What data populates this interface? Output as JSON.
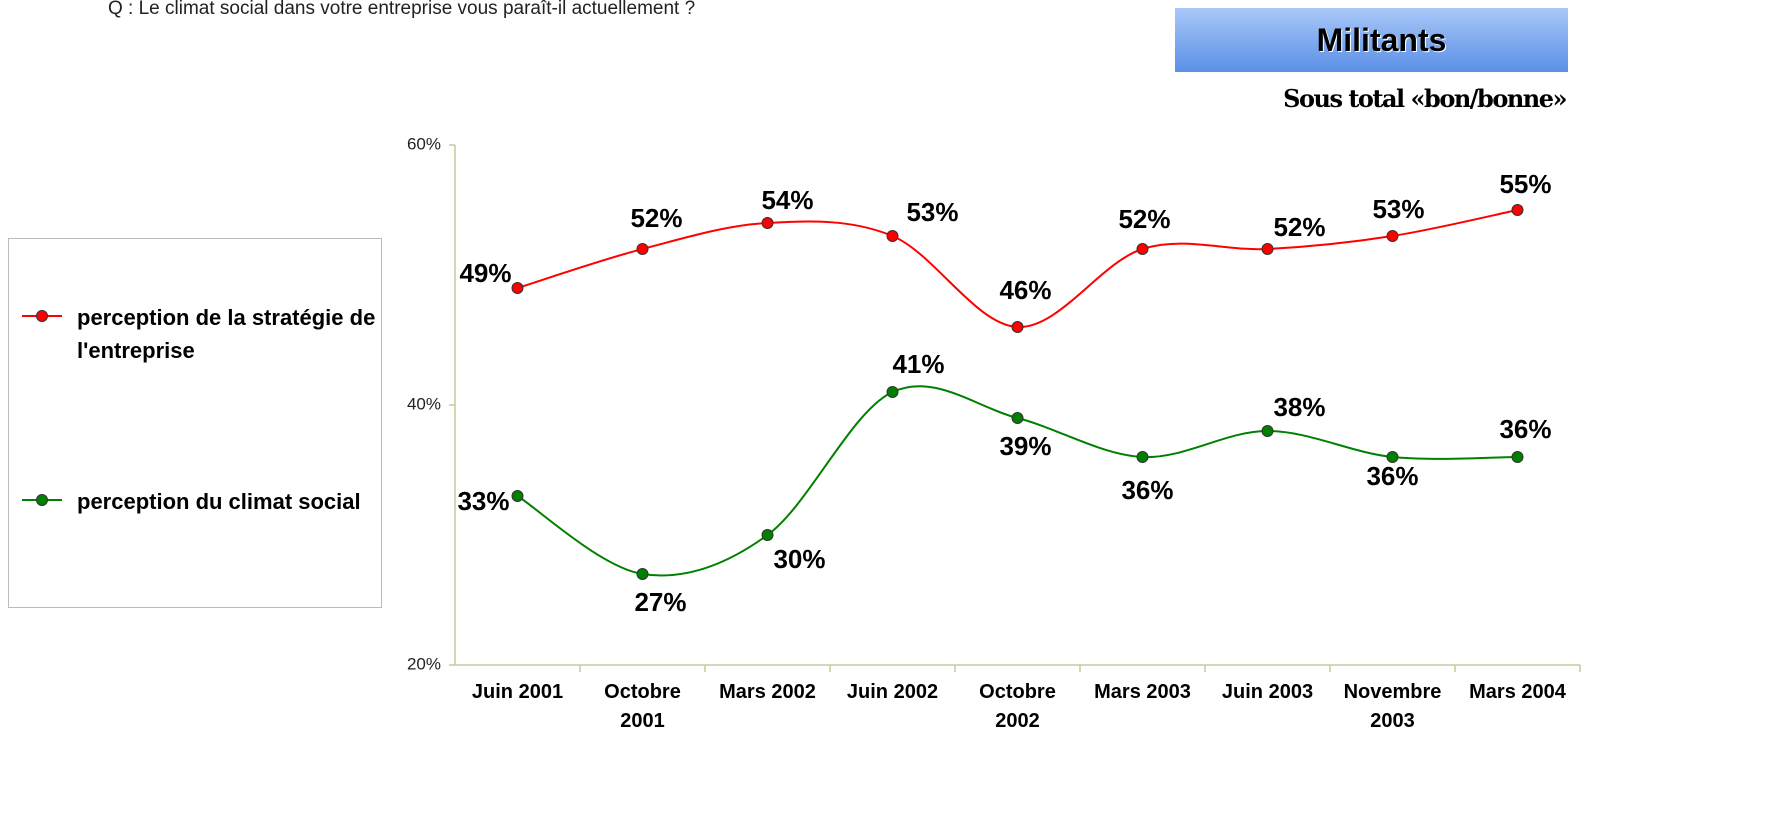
{
  "question": "Q : Le climat social dans votre entreprise vous paraît-il actuellement ?",
  "badge": "Militants",
  "chart_data": {
    "type": "line",
    "subtitle": "Sous total «bon/bonne»",
    "categories": [
      "Juin 2001",
      "Octobre 2001",
      "Mars 2002",
      "Juin 2002",
      "Octobre 2002",
      "Mars 2003",
      "Juin 2003",
      "Novembre 2003",
      "Mars 2004"
    ],
    "series": [
      {
        "name": "perception de la stratégie de l'entreprise",
        "color": "#ff0000",
        "values": [
          49,
          52,
          54,
          53,
          46,
          52,
          52,
          53,
          55
        ],
        "value_labels": [
          "49%",
          "52%",
          "54%",
          "53%",
          "46%",
          "52%",
          "52%",
          "53%",
          "55%"
        ]
      },
      {
        "name": "perception du climat social",
        "color": "#008000",
        "values": [
          33,
          27,
          30,
          41,
          39,
          36,
          38,
          36,
          36
        ],
        "value_labels": [
          "33%",
          "27%",
          "30%",
          "41%",
          "39%",
          "36%",
          "38%",
          "36%",
          "36%"
        ]
      }
    ],
    "ylim": [
      20,
      60
    ],
    "yticks": [
      {
        "value": 20,
        "label": "20%"
      },
      {
        "value": 40,
        "label": "40%"
      },
      {
        "value": 60,
        "label": "60%"
      }
    ],
    "grid": false
  }
}
